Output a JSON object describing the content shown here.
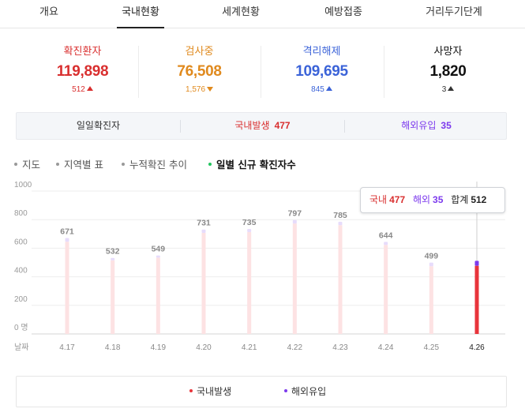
{
  "tabs": [
    {
      "label": "개요"
    },
    {
      "label": "국내현황"
    },
    {
      "label": "세계현황"
    },
    {
      "label": "예방접종"
    },
    {
      "label": "거리두기단계"
    }
  ],
  "stats": [
    {
      "label": "확진환자",
      "value": "119,898",
      "delta": "512",
      "direction": "up",
      "color": "#d92f2f",
      "delta_color": "#d92f2f"
    },
    {
      "label": "검사중",
      "value": "76,508",
      "delta": "1,576",
      "direction": "down",
      "color": "#e08a1e",
      "delta_color": "#e08a1e"
    },
    {
      "label": "격리해제",
      "value": "109,695",
      "delta": "845",
      "direction": "up",
      "color": "#3b63d8",
      "delta_color": "#3b63d8"
    },
    {
      "label": "사망자",
      "value": "1,820",
      "delta": "3",
      "direction": "up",
      "color": "#111111",
      "delta_color": "#333333"
    }
  ],
  "daily": {
    "label": "일일확진자",
    "domestic_label": "국내발생",
    "domestic_value": "477",
    "overseas_label": "해외유입",
    "overseas_value": "35",
    "domestic_color": "#d92f2f",
    "overseas_color": "#7c3aed"
  },
  "submenu": [
    {
      "label": "지도",
      "active": false
    },
    {
      "label": "지역별 표",
      "active": false
    },
    {
      "label": "누적확진 추이",
      "active": false
    },
    {
      "label": "일별 신규 확진자수",
      "active": true
    }
  ],
  "tooltip": {
    "domestic_label": "국내",
    "domestic_value": "477",
    "overseas_label": "해외",
    "overseas_value": "35",
    "total_label": "합계",
    "total_value": "512"
  },
  "chart_data": {
    "type": "bar",
    "stacked": true,
    "x_label": "날짜",
    "y_unit": "명",
    "categories": [
      "4.17",
      "4.18",
      "4.19",
      "4.20",
      "4.21",
      "4.22",
      "4.23",
      "4.24",
      "4.25",
      "4.26"
    ],
    "totals": [
      671,
      532,
      549,
      731,
      735,
      797,
      785,
      644,
      499,
      512
    ],
    "series": [
      {
        "name": "국내발생",
        "color": "#e8343b",
        "faded_color": "#fde2e3",
        "values": [
          645,
          515,
          534,
          707,
          713,
          773,
          761,
          623,
          474,
          477
        ]
      },
      {
        "name": "해외유입",
        "color": "#7c3aed",
        "faded_color": "#e7dcfb",
        "values": [
          26,
          17,
          15,
          24,
          22,
          24,
          24,
          21,
          25,
          35
        ]
      }
    ],
    "highlight_index": 9,
    "ylim": [
      0,
      1000
    ],
    "yticks": [
      0,
      200,
      400,
      600,
      800,
      1000
    ],
    "zero_tick_label": "0 명",
    "grid": true
  },
  "legend": [
    {
      "label": "국내발생",
      "color": "#e8343b"
    },
    {
      "label": "해외유입",
      "color": "#7c3aed"
    }
  ]
}
